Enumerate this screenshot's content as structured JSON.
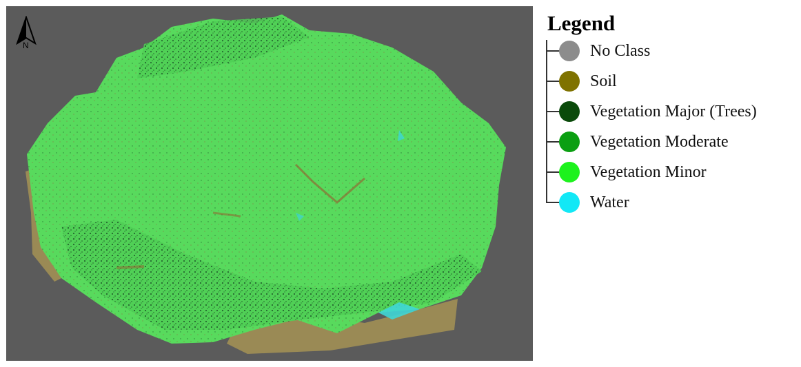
{
  "map": {
    "background_color": "#5b5b5b",
    "north_arrow": {
      "icon": "north-arrow-icon",
      "label": "N"
    },
    "classes_shown": [
      "No Class",
      "Soil",
      "Vegetation Major (Trees)",
      "Vegetation Moderate",
      "Vegetation Minor",
      "Water"
    ]
  },
  "legend": {
    "title": "Legend",
    "items": [
      {
        "label": "No Class",
        "color": "#8c8c8c"
      },
      {
        "label": "Soil",
        "color": "#7f7200"
      },
      {
        "label": "Vegetation Major (Trees)",
        "color": "#0a4a0a"
      },
      {
        "label": "Vegetation Moderate",
        "color": "#0b9f12"
      },
      {
        "label": "Vegetation Minor",
        "color": "#1df21d"
      },
      {
        "label": "Water",
        "color": "#12e8f6"
      }
    ]
  },
  "colors": {
    "soil_fill": "#9a8a55",
    "vegetation_light": "#55d95b",
    "vegetation_dark": "#1f5a2a",
    "water": "#3fd6d6"
  }
}
